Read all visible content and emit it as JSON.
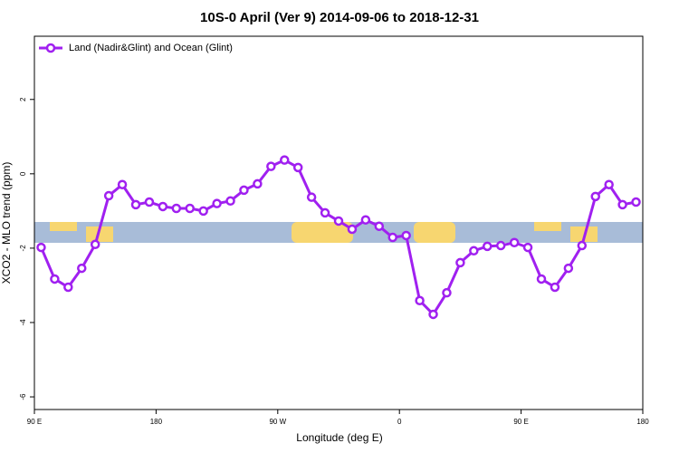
{
  "chart_data": {
    "type": "line",
    "title": "10S-0 April (Ver 9)   2014-09-06 to 2018-12-31",
    "xlabel": "Longitude (deg E)",
    "ylabel": "XCO2 - MLO trend (ppm)",
    "x": [
      95,
      105,
      115,
      125,
      135,
      145,
      155,
      165,
      175,
      185,
      195,
      205,
      215,
      225,
      235,
      245,
      255,
      265,
      275,
      285,
      295,
      305,
      315,
      325,
      335,
      345,
      355,
      365,
      375,
      385,
      395,
      405,
      415,
      425,
      435,
      445,
      455,
      465,
      475,
      485,
      495,
      505,
      515,
      525,
      535
    ],
    "series": [
      {
        "name": "Land (Nadir&Glint) and Ocean (Glint)",
        "color": "#a020f0",
        "values": [
          -1.98,
          -2.83,
          -3.05,
          -2.54,
          -1.9,
          -0.59,
          -0.29,
          -0.83,
          -0.76,
          -0.88,
          -0.93,
          -0.93,
          -1.0,
          -0.8,
          -0.73,
          -0.44,
          -0.27,
          0.2,
          0.37,
          0.17,
          -0.63,
          -1.05,
          -1.27,
          -1.49,
          -1.24,
          -1.41,
          -1.71,
          -1.66,
          -3.41,
          -3.78,
          -3.2,
          -2.39,
          -2.07,
          -1.95,
          -1.93,
          -1.85,
          -1.98,
          -2.83,
          -3.05,
          -2.54,
          -1.93,
          -0.61,
          -0.29,
          -0.83,
          -0.76
        ]
      }
    ],
    "xlim": [
      90,
      540
    ],
    "xticks": [
      {
        "value": 90,
        "label": "90 E"
      },
      180,
      {
        "value": 270,
        "label": "90 W"
      },
      {
        "value": 360,
        "label": "0"
      },
      {
        "value": 450,
        "label": "90 E"
      },
      {
        "value": 540,
        "label": "180"
      }
    ],
    "ylim": [
      -6.34,
      3.7
    ],
    "yticks": [
      -6,
      -4,
      -2,
      0,
      2
    ],
    "legend": "top-left"
  }
}
